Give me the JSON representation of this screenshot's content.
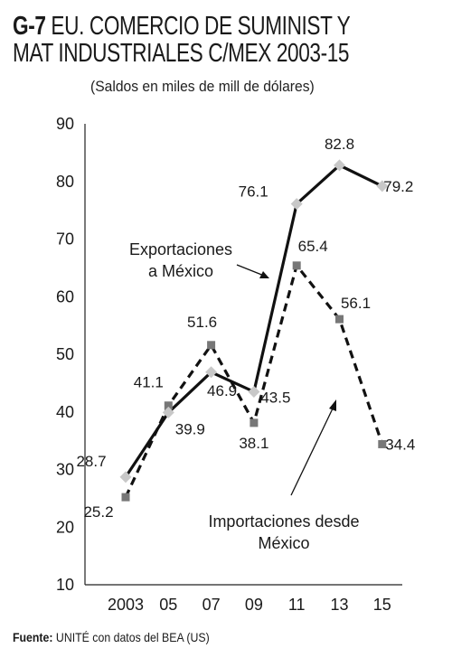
{
  "header": {
    "code": "G-7",
    "title_line1": "EU. COMERCIO DE SUMINIST Y",
    "title_line2": "MAT INDUSTRIALES C/MEX 2003-15",
    "subtitle": "(Saldos en miles de mill de dólares)"
  },
  "footer": {
    "source_label": "Fuente:",
    "source_text": "UNITÉ con datos del BEA (US)"
  },
  "chart_data": {
    "type": "line",
    "x": [
      "2003",
      "05",
      "07",
      "09",
      "11",
      "13",
      "15"
    ],
    "ylim": [
      10,
      90
    ],
    "yticks": [
      10,
      20,
      30,
      40,
      50,
      60,
      70,
      80,
      90
    ],
    "grid": false,
    "series": [
      {
        "name": "Exportaciones a México",
        "annotation_lines": [
          "Exportaciones",
          "a México"
        ],
        "style": "solid",
        "color": "#111111",
        "marker_color": "#c8c8c8",
        "marker": "diamond",
        "values": [
          28.7,
          39.9,
          46.9,
          43.5,
          76.1,
          82.8,
          79.2
        ],
        "labels": [
          "28.7",
          "39.9",
          "46.9",
          "43.5",
          "76.1",
          "82.8",
          "79.2"
        ]
      },
      {
        "name": "Importaciones desde México",
        "annotation_lines": [
          "Importaciones desde",
          "México"
        ],
        "style": "dashed",
        "color": "#111111",
        "marker_color": "#777777",
        "marker": "square",
        "values": [
          25.2,
          41.1,
          51.6,
          38.1,
          65.4,
          56.1,
          34.4
        ],
        "labels": [
          "25.2",
          "41.1",
          "51.6",
          "38.1",
          "65.4",
          "56.1",
          "34.4"
        ]
      }
    ]
  }
}
